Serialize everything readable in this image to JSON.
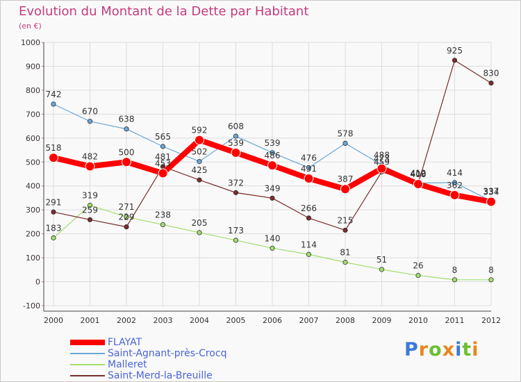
{
  "title": "Evolution du Montant de la Dette par Habitant",
  "subtitle": "(en €)",
  "logo": {
    "text": "Proxiti",
    "letter_colors": [
      "#3a7bd5",
      "#e8871e",
      "#6cbf30",
      "#e8871e",
      "#3a7bd5",
      "#6cbf30",
      "#e8871e"
    ]
  },
  "chart_data": {
    "type": "line",
    "title": "Evolution du Montant de la Dette par Habitant",
    "ylabel": "(en €)",
    "xlabel": "",
    "x": [
      "2000",
      "2001",
      "2002",
      "2003",
      "2004",
      "2005",
      "2006",
      "2007",
      "2008",
      "2009",
      "2010",
      "2011",
      "2012"
    ],
    "ylim": [
      -100,
      1000
    ],
    "yticks": [
      -100,
      0,
      100,
      200,
      300,
      400,
      500,
      600,
      700,
      800,
      900,
      1000
    ],
    "grid": true,
    "legend_position": "bottom",
    "series": [
      {
        "name": "FLAYAT",
        "color": "#ff0000",
        "width": 8,
        "values": [
          518,
          482,
          500,
          453,
          592,
          539,
          486,
          431,
          387,
          473,
          408,
          362,
          334
        ]
      },
      {
        "name": "Saint-Agnant-près-Crocq",
        "color": "#6aa6d6",
        "width": 1.2,
        "values": [
          742,
          670,
          638,
          565,
          502,
          608,
          539,
          476,
          578,
          488,
          412,
          414,
          337
        ]
      },
      {
        "name": "Malleret",
        "color": "#a3dd6e",
        "width": 1.2,
        "values": [
          183,
          319,
          271,
          238,
          205,
          173,
          140,
          114,
          81,
          51,
          26,
          8,
          8
        ]
      },
      {
        "name": "Saint-Merd-la-Breuille",
        "color": "#7a2a2a",
        "width": 1.2,
        "values": [
          291,
          259,
          229,
          481,
          425,
          372,
          349,
          266,
          215,
          459,
          410,
          925,
          830
        ]
      }
    ]
  }
}
